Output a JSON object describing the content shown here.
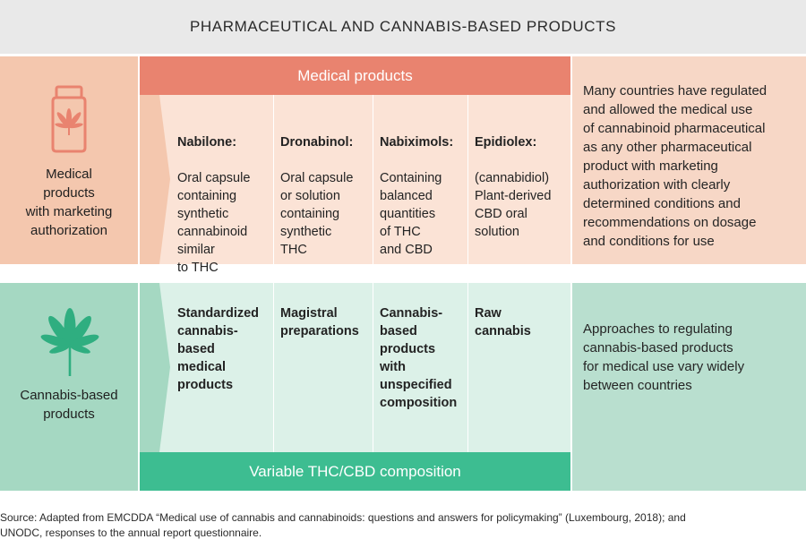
{
  "title": "PHARMACEUTICAL AND CANNABIS-BASED PRODUCTS",
  "colors": {
    "medical_accent": "#e9836f",
    "medical_light": "#fbe3d6",
    "cannabis_accent": "#3dbd91",
    "cannabis_light": "#dcf1e8"
  },
  "medical_row": {
    "icon": "cannabis-medicine-bottle-icon",
    "label": "Medical\nproducts\nwith marketing\nauthorization",
    "header": "Medical products",
    "products": [
      {
        "name": "Nabilone:",
        "desc": "Oral capsule\ncontaining\nsynthetic\ncannabinoid\nsimilar\nto THC"
      },
      {
        "name": "Dronabinol:",
        "desc": "Oral capsule\nor solution\ncontaining\nsynthetic\nTHC"
      },
      {
        "name": "Nabiximols:",
        "desc": "Containing\nbalanced\nquantities\nof THC\nand CBD"
      },
      {
        "name": "Epidiolex:",
        "desc": "(cannabidiol)\nPlant-derived\nCBD oral\nsolution"
      }
    ],
    "description": "Many countries have regulated\nand allowed the medical use\nof cannabinoid pharmaceutical\nas any other pharmaceutical\nproduct with marketing\nauthorization with clearly\ndetermined conditions and\nrecommendations on dosage\nand conditions for use"
  },
  "cannabis_row": {
    "icon": "cannabis-leaf-icon",
    "label": "Cannabis-based\nproducts",
    "products": [
      "Standardized\ncannabis-\nbased\nmedical\nproducts",
      "Magistral\npreparations",
      "Cannabis-\nbased\nproducts\nwith\nunspecified\ncomposition",
      "Raw\ncannabis"
    ],
    "footer": "Variable THC/CBD composition",
    "description": "Approaches to regulating\ncannabis-based products\nfor medical use vary widely\nbetween countries"
  },
  "source": "Source: Adapted from EMCDDA “Medical use of cannabis and cannabinoids: questions and answers for policymaking” (Luxembourg, 2018); and\nUNODC, responses to the annual report questionnaire."
}
